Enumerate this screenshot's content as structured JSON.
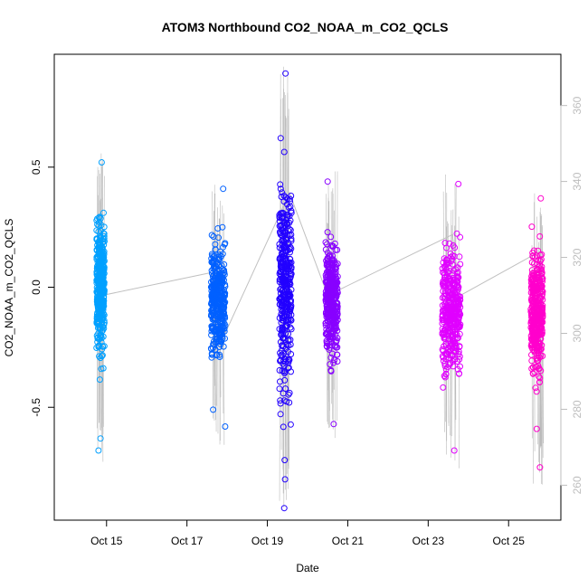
{
  "chart_data": {
    "type": "scatter",
    "title": "ATOM3 Northbound CO2_NOAA_m_CO2_QCLS",
    "xlabel": "Date",
    "ylabel": "CO2_NOAA_m_CO2_QCLS",
    "x_ticks": [
      "Oct 15",
      "Oct 17",
      "Oct 19",
      "Oct 21",
      "Oct 23",
      "Oct 25"
    ],
    "x_tick_days": [
      15,
      17,
      19,
      21,
      23,
      25
    ],
    "xlim_days": [
      13.7,
      26.3
    ],
    "ylim": [
      -0.97,
      0.97
    ],
    "y_ticks": [
      -0.5,
      0.0,
      0.5
    ],
    "y_tick_labels": [
      "-0.5",
      "0.0",
      "0.5"
    ],
    "right_axis": {
      "label": "",
      "color": "#bdbdbd",
      "ylim": [
        250.8,
        373.5
      ],
      "ticks": [
        260,
        280,
        300,
        320,
        340,
        360
      ],
      "tick_labels": [
        "260",
        "280",
        "300",
        "320",
        "340",
        "360"
      ]
    },
    "grid": false,
    "legend": "none",
    "series": [
      {
        "color": "#00a0ff",
        "x_days": [
          14.75,
          14.95
        ],
        "y_min": -0.69,
        "y_max": 0.53,
        "y_center": 0.0,
        "outliers": [
          [
            14.88,
            0.52
          ],
          [
            14.8,
            -0.68
          ],
          [
            14.85,
            -0.63
          ]
        ]
      },
      {
        "color": "#0060ff",
        "x_days": [
          17.6,
          17.95
        ],
        "y_min": -0.58,
        "y_max": 0.41,
        "y_center": -0.05,
        "outliers": [
          [
            17.9,
            0.41
          ],
          [
            17.65,
            -0.51
          ],
          [
            17.95,
            -0.58
          ]
        ]
      },
      {
        "color": "#2200ff",
        "x_days": [
          19.3,
          19.6
        ],
        "y_min": -0.92,
        "y_max": 0.89,
        "y_center": 0.0,
        "outliers": [
          [
            19.45,
            0.89
          ],
          [
            19.42,
            -0.92
          ],
          [
            19.44,
            -0.8
          ],
          [
            19.43,
            -0.72
          ]
        ]
      },
      {
        "color": "#8800ff",
        "x_days": [
          20.45,
          20.75
        ],
        "y_min": -0.58,
        "y_max": 0.44,
        "y_center": -0.05,
        "outliers": [
          [
            20.5,
            0.44
          ],
          [
            20.65,
            -0.57
          ]
        ]
      },
      {
        "color": "#e000ff",
        "x_days": [
          23.35,
          23.8
        ],
        "y_min": -0.68,
        "y_max": 0.43,
        "y_center": -0.1,
        "outliers": [
          [
            23.75,
            0.43
          ],
          [
            23.65,
            -0.68
          ]
        ]
      },
      {
        "color": "#ff00cc",
        "x_days": [
          25.55,
          25.85
        ],
        "y_min": -0.75,
        "y_max": 0.37,
        "y_center": -0.1,
        "outliers": [
          [
            25.8,
            0.37
          ],
          [
            25.78,
            -0.75
          ],
          [
            25.7,
            -0.59
          ]
        ]
      }
    ],
    "reference_line": {
      "color": "#c0c0c0",
      "points_days_right_axis": [
        [
          14.9,
          310
        ],
        [
          17.6,
          316
        ],
        [
          17.95,
          300
        ],
        [
          19.55,
          337
        ],
        [
          20.5,
          310
        ],
        [
          23.6,
          326
        ],
        [
          23.8,
          310
        ],
        [
          25.85,
          322
        ]
      ]
    }
  }
}
